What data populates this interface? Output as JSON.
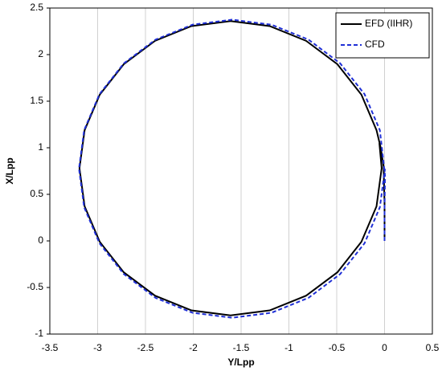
{
  "chart_data": {
    "type": "line",
    "x_label": "Y/Lpp",
    "y_label": "X/Lpp",
    "xlim": [
      -3.5,
      0.5
    ],
    "xticks": [
      -3.5,
      -3,
      -2.5,
      -2,
      -1.5,
      -1,
      -0.5,
      0,
      0.5
    ],
    "ylim": [
      -1,
      2.5
    ],
    "yticks": [
      -1,
      -0.5,
      0,
      0.5,
      1,
      1.5,
      2,
      2.5
    ],
    "grid": "x",
    "legend": "upper right",
    "series": [
      {
        "name": "EFD (IIHR)",
        "color": "#000000",
        "dash": "solid",
        "x": [
          0,
          0,
          -0.01,
          -0.04,
          -0.084,
          -0.242,
          -0.493,
          -0.82,
          -1.201,
          -1.61,
          -2.019,
          -2.4,
          -2.727,
          -2.978,
          -3.136,
          -3.19,
          -3.136,
          -2.978,
          -2.727,
          -2.4,
          -2.019,
          -1.61,
          -1.201,
          -0.82,
          -0.493,
          -0.242,
          -0.084,
          -0.03,
          -0.054
        ],
        "values": [
          0,
          0.4,
          0.8,
          1.0,
          1.189,
          1.57,
          1.897,
          2.148,
          2.306,
          2.36,
          2.306,
          2.148,
          1.897,
          1.57,
          1.189,
          0.78,
          0.371,
          -0.01,
          -0.337,
          -0.588,
          -0.746,
          -0.8,
          -0.746,
          -0.588,
          -0.337,
          -0.01,
          0.371,
          0.78,
          1.05
        ]
      },
      {
        "name": "CFD",
        "color": "#1f2fd6",
        "dash": "dashed",
        "x": [
          0,
          0,
          0.005,
          -0.049,
          -0.209,
          -0.464,
          -0.795,
          -1.181,
          -1.595,
          -2.009,
          -2.395,
          -2.726,
          -2.981,
          -3.141,
          -3.195,
          -3.141,
          -2.981,
          -2.726,
          -2.395,
          -2.009,
          -1.595,
          -1.181,
          -0.795,
          -0.464,
          -0.209,
          -0.049,
          0.005
        ],
        "values": [
          0,
          0.35,
          0.7,
          1.189,
          1.575,
          1.906,
          2.161,
          2.321,
          2.375,
          2.321,
          2.161,
          1.906,
          1.575,
          1.189,
          0.775,
          0.361,
          -0.025,
          -0.356,
          -0.611,
          -0.771,
          -0.825,
          -0.771,
          -0.611,
          -0.356,
          -0.025,
          0.361,
          0.775
        ]
      }
    ]
  }
}
